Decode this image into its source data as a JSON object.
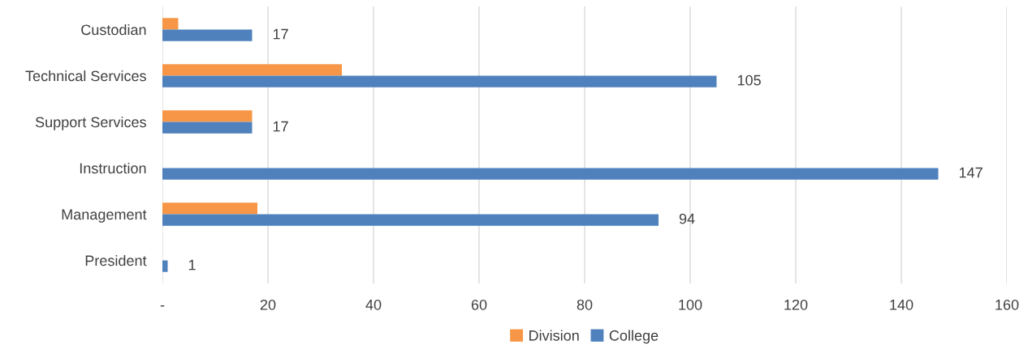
{
  "chart_data": {
    "type": "bar",
    "orientation": "horizontal",
    "categories": [
      "Custodian",
      "Technical Services",
      "Support Services",
      "Instruction",
      "Management",
      "President"
    ],
    "series": [
      {
        "name": "Division",
        "color": "#f79646",
        "values": [
          3,
          34,
          17,
          null,
          18,
          null
        ]
      },
      {
        "name": "College",
        "color": "#4f81bd",
        "values": [
          17,
          105,
          17,
          147,
          94,
          1
        ],
        "value_labels": [
          "17",
          "105",
          "17",
          "147",
          "94",
          "1"
        ]
      }
    ],
    "xlim": [
      0,
      160
    ],
    "xticks": [
      {
        "value": 0,
        "label": "-"
      },
      20,
      40,
      60,
      80,
      100,
      120,
      140,
      160
    ],
    "grid": "x",
    "legend": "bottom"
  }
}
